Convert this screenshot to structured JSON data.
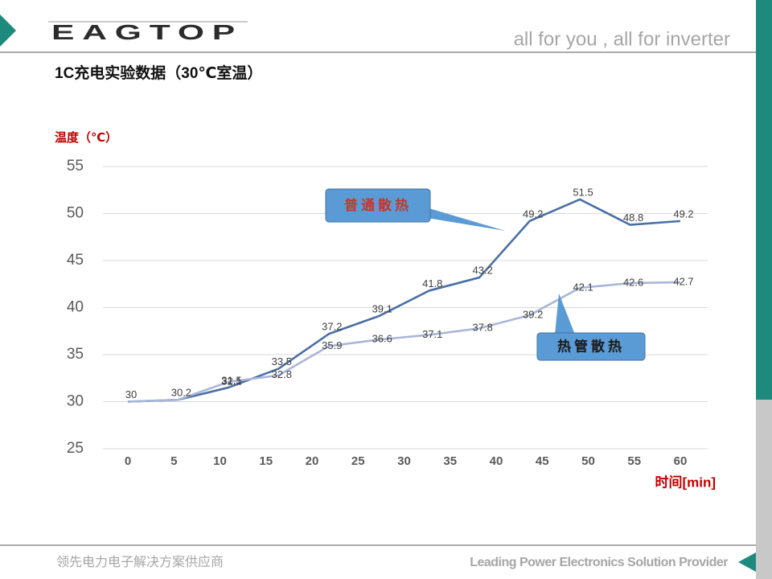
{
  "header": {
    "logo": "EAGTOP",
    "tagline": "all for you , all for inverter"
  },
  "footer": {
    "left": "领先电力电子解决方案供应商",
    "right": "Leading Power Electronics Solution Provider"
  },
  "chart_data": {
    "type": "line",
    "title": "1C充电实验数据（30℃室温）",
    "y_label": "温度（℃）",
    "x_label": "时间[min]",
    "x": [
      0,
      5.45,
      10.91,
      16.36,
      21.82,
      27.27,
      32.73,
      38.18,
      43.64,
      49.09,
      54.55,
      60
    ],
    "xlim": [
      0,
      60
    ],
    "xticks": [
      0,
      5,
      10,
      15,
      20,
      25,
      30,
      35,
      40,
      45,
      50,
      55,
      60
    ],
    "ylim": [
      25,
      55
    ],
    "yticks": [
      25,
      30,
      35,
      40,
      45,
      50,
      55
    ],
    "grid": true,
    "series": [
      {
        "name": "普通散热",
        "color": "#4a6fa5",
        "values": [
          30,
          30.2,
          31.5,
          33.5,
          37.2,
          39.1,
          41.8,
          43.2,
          49.2,
          51.5,
          48.8,
          49.2
        ],
        "value_labels": [
          "30",
          "30.2",
          "31.5",
          "33.5",
          "37.2",
          "39.1",
          "41.8",
          "43.2",
          "49.2",
          "51.5",
          "48.8",
          "49.2"
        ]
      },
      {
        "name": "热管散热",
        "color": "#a9b6d8",
        "values": [
          30,
          30.2,
          32.1,
          32.8,
          35.9,
          36.6,
          37.1,
          37.8,
          39.2,
          42.1,
          42.6,
          42.7
        ],
        "value_labels": [
          null,
          null,
          "32.1",
          "32.8",
          "35.9",
          "36.6",
          "37.1",
          "37.8",
          "39.2",
          "42.1",
          "42.6",
          "42.7"
        ]
      }
    ]
  }
}
